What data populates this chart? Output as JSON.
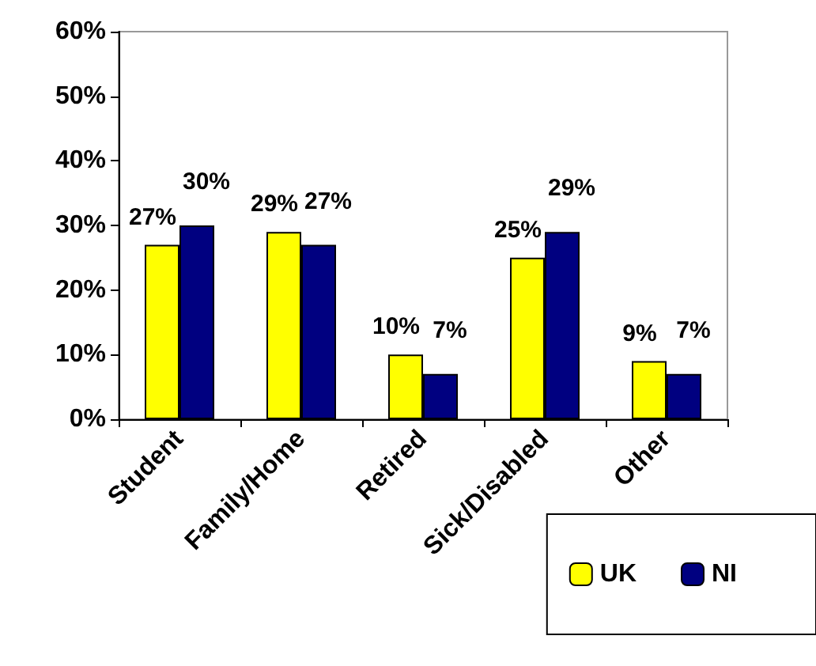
{
  "chart_data": {
    "type": "bar",
    "categories": [
      "Student",
      "Family/Home",
      "Retired",
      "Sick/Disabled",
      "Other"
    ],
    "series": [
      {
        "name": "UK",
        "color": "#ffff00",
        "values": [
          27,
          29,
          10,
          25,
          9
        ],
        "value_labels": [
          "27%",
          "29%",
          "10%",
          "25%",
          "9%"
        ]
      },
      {
        "name": "NI",
        "color": "#000080",
        "values": [
          30,
          27,
          7,
          29,
          7
        ],
        "value_labels": [
          "30%",
          "27%",
          "7%",
          "29%",
          "7%"
        ]
      }
    ],
    "ylim": [
      0,
      60
    ],
    "yticks": [
      {
        "value": 0,
        "label": "0%"
      },
      {
        "value": 10,
        "label": "10%"
      },
      {
        "value": 20,
        "label": "20%"
      },
      {
        "value": 30,
        "label": "30%"
      },
      {
        "value": 40,
        "label": "40%"
      },
      {
        "value": 50,
        "label": "50%"
      },
      {
        "value": 60,
        "label": "60%"
      }
    ],
    "grid": false,
    "legend": "bottom right"
  }
}
